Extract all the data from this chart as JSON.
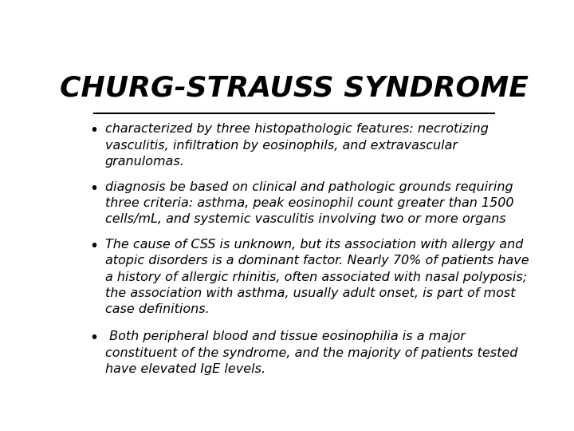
{
  "title": "CHURG-STRAUSS SYNDROME",
  "background_color": "#ffffff",
  "title_color": "#000000",
  "title_fontsize": 26,
  "text_color": "#000000",
  "text_fontsize": 11.5,
  "bullets": [
    "characterized by three histopathologic features: necrotizing\nvasculitis, infiltration by eosinophils, and extravascular\ngranulomas.",
    "diagnosis be based on clinical and pathologic grounds requiring\nthree criteria: asthma, peak eosinophil count greater than 1500\ncells/mL, and systemic vasculitis involving two or more organs",
    "The cause of CSS is unknown, but its association with allergy and\natopic disorders is a dominant factor. Nearly 70% of patients have\na history of allergic rhinitis, often associated with nasal polyposis;\nthe association with asthma, usually adult onset, is part of most\ncase definitions.",
    " Both peripheral blood and tissue eosinophilia is a major\nconstituent of the syndrome, and the majority of patients tested\nhave elevated IgE levels."
  ]
}
